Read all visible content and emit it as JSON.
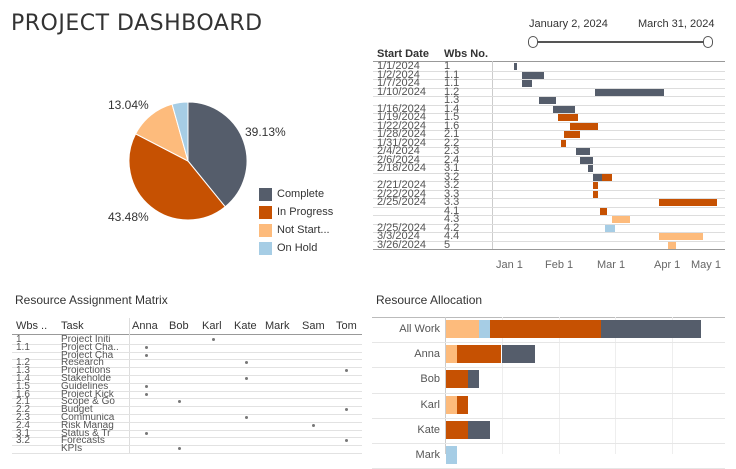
{
  "title": "PROJECT DASHBOARD",
  "colors": {
    "complete": "#555d6b",
    "in_progress": "#c65102",
    "not_started": "#fdbb7c",
    "on_hold": "#a6cde5"
  },
  "date_range": {
    "start": "January 2, 2024",
    "end": "March 31, 2024"
  },
  "pie": {
    "slices": [
      {
        "name": "Complete",
        "value": 39.13,
        "label": "39.13%"
      },
      {
        "name": "In Progress",
        "value": 43.48,
        "label": "43.48%"
      },
      {
        "name": "Not Started",
        "value": 13.04,
        "label": "13.04%"
      },
      {
        "name": "On Hold",
        "value": 4.35,
        "label": ""
      }
    ],
    "legend": [
      "Complete",
      "In Progress",
      "Not Start...",
      "On Hold"
    ]
  },
  "gantt": {
    "headers": {
      "start": "Start Date",
      "wbs": "Wbs No."
    },
    "axis": [
      "Jan 1",
      "Feb 1",
      "Mar 1",
      "Apr 1",
      "May 1"
    ],
    "rows": [
      {
        "date": "1/1/2024",
        "wbs": "1"
      },
      {
        "date": "1/2/2024",
        "wbs": "1.1"
      },
      {
        "date": "1/7/2024",
        "wbs": "1.1"
      },
      {
        "date": "1/10/2024",
        "wbs": "1.2"
      },
      {
        "date": "",
        "wbs": "1.3"
      },
      {
        "date": "1/16/2024",
        "wbs": "1.4"
      },
      {
        "date": "1/19/2024",
        "wbs": "1.5"
      },
      {
        "date": "1/22/2024",
        "wbs": "1.6"
      },
      {
        "date": "1/28/2024",
        "wbs": "2.1"
      },
      {
        "date": "1/31/2024",
        "wbs": "2.2"
      },
      {
        "date": "2/4/2024",
        "wbs": "2.3"
      },
      {
        "date": "2/6/2024",
        "wbs": "2.4"
      },
      {
        "date": "2/18/2024",
        "wbs": "3.1"
      },
      {
        "date": "",
        "wbs": "3.2"
      },
      {
        "date": "2/21/2024",
        "wbs": "3.2"
      },
      {
        "date": "2/22/2024",
        "wbs": "3.3"
      },
      {
        "date": "2/25/2024",
        "wbs": "3.3"
      },
      {
        "date": "",
        "wbs": "4.1"
      },
      {
        "date": "",
        "wbs": "4.3"
      },
      {
        "date": "2/25/2024",
        "wbs": "4.2"
      },
      {
        "date": "3/3/2024",
        "wbs": "4.4"
      },
      {
        "date": "3/26/2024",
        "wbs": "5"
      }
    ],
    "bars": [
      {
        "row": 0,
        "start": "2024-01-05",
        "end": "2024-01-07",
        "status": "complete"
      },
      {
        "row": 1,
        "start": "2024-01-10",
        "end": "2024-01-23",
        "status": "complete"
      },
      {
        "row": 2,
        "start": "2024-01-10",
        "end": "2024-01-16",
        "status": "complete"
      },
      {
        "row": 3,
        "start": "2024-02-22",
        "end": "2024-04-03",
        "status": "complete"
      },
      {
        "row": 4,
        "start": "2024-01-20",
        "end": "2024-01-30",
        "status": "complete"
      },
      {
        "row": 5,
        "start": "2024-01-28",
        "end": "2024-02-10",
        "status": "complete"
      },
      {
        "row": 6,
        "start": "2024-01-31",
        "end": "2024-02-12",
        "status": "in_progress"
      },
      {
        "row": 7,
        "start": "2024-02-07",
        "end": "2024-02-24",
        "status": "in_progress"
      },
      {
        "row": 8,
        "start": "2024-02-04",
        "end": "2024-02-13",
        "status": "in_progress"
      },
      {
        "row": 9,
        "start": "2024-02-02",
        "end": "2024-02-05",
        "status": "in_progress"
      },
      {
        "row": 10,
        "start": "2024-02-11",
        "end": "2024-02-19",
        "status": "complete"
      },
      {
        "row": 11,
        "start": "2024-02-13",
        "end": "2024-02-21",
        "status": "complete"
      },
      {
        "row": 12,
        "start": "2024-02-18",
        "end": "2024-02-21",
        "status": "complete"
      },
      {
        "row": 13,
        "start": "2024-02-21",
        "end": "2024-02-26",
        "status": "complete"
      },
      {
        "row": 13,
        "start": "2024-02-26",
        "end": "2024-03-03",
        "status": "in_progress"
      },
      {
        "row": 14,
        "start": "2024-02-21",
        "end": "2024-02-24",
        "status": "in_progress"
      },
      {
        "row": 15,
        "start": "2024-02-21",
        "end": "2024-02-24",
        "status": "in_progress"
      },
      {
        "row": 16,
        "start": "2024-03-31",
        "end": "2024-05-04",
        "status": "in_progress"
      },
      {
        "row": 17,
        "start": "2024-02-25",
        "end": "2024-02-29",
        "status": "in_progress"
      },
      {
        "row": 18,
        "start": "2024-03-03",
        "end": "2024-03-14",
        "status": "not_started"
      },
      {
        "row": 19,
        "start": "2024-02-28",
        "end": "2024-03-05",
        "status": "on_hold"
      },
      {
        "row": 20,
        "start": "2024-03-31",
        "end": "2024-04-26",
        "status": "not_started"
      },
      {
        "row": 21,
        "start": "2024-04-05",
        "end": "2024-04-10",
        "status": "not_started"
      }
    ]
  },
  "matrix": {
    "title": "Resource Assignment Matrix",
    "headers": [
      "Wbs ..",
      "Task",
      "Anna",
      "Bob",
      "Karl",
      "Kate",
      "Mark",
      "Sam",
      "Tom"
    ],
    "rows": [
      {
        "wbs": "1",
        "task": "Project Initi",
        "marks": [
          "Karl"
        ]
      },
      {
        "wbs": "1.1",
        "task": "Project Cha..",
        "marks": [
          "Anna"
        ]
      },
      {
        "wbs": "",
        "task": "Project Cha",
        "marks": [
          "Anna"
        ]
      },
      {
        "wbs": "1.2",
        "task": "Research",
        "marks": [
          "Kate"
        ]
      },
      {
        "wbs": "1.3",
        "task": "Projections",
        "marks": [
          "Tom"
        ]
      },
      {
        "wbs": "1.4",
        "task": "Stakeholde",
        "marks": [
          "Kate"
        ]
      },
      {
        "wbs": "1.5",
        "task": "Guidelines",
        "marks": [
          "Anna"
        ]
      },
      {
        "wbs": "1.6",
        "task": "Project Kick",
        "marks": [
          "Anna"
        ]
      },
      {
        "wbs": "2.1",
        "task": "Scope & Go",
        "marks": [
          "Bob"
        ]
      },
      {
        "wbs": "2.2",
        "task": "Budget",
        "marks": [
          "Tom"
        ]
      },
      {
        "wbs": "2.3",
        "task": "Communica",
        "marks": [
          "Kate"
        ]
      },
      {
        "wbs": "2.4",
        "task": "Risk Manag",
        "marks": [
          "Sam"
        ]
      },
      {
        "wbs": "3.1",
        "task": "Status & Tr",
        "marks": [
          "Anna"
        ]
      },
      {
        "wbs": "3.2",
        "task": "Forecasts",
        "marks": [
          "Tom"
        ]
      },
      {
        "wbs": "",
        "task": "KPIs",
        "marks": [
          "Bob"
        ]
      }
    ]
  },
  "allocation": {
    "title": "Resource Allocation",
    "rows": [
      {
        "name": "All Work",
        "not_started": 3,
        "on_hold": 1,
        "in_progress": 10,
        "complete": 9
      },
      {
        "name": "Anna",
        "not_started": 1,
        "on_hold": 0,
        "in_progress": 4,
        "complete": 3
      },
      {
        "name": "Bob",
        "not_started": 0,
        "on_hold": 0,
        "in_progress": 2,
        "complete": 1
      },
      {
        "name": "Karl",
        "not_started": 1,
        "on_hold": 0,
        "in_progress": 1,
        "complete": 0
      },
      {
        "name": "Kate",
        "not_started": 0,
        "on_hold": 0,
        "in_progress": 2,
        "complete": 2
      },
      {
        "name": "Mark",
        "not_started": 0,
        "on_hold": 1,
        "in_progress": 0,
        "complete": 0
      }
    ]
  }
}
